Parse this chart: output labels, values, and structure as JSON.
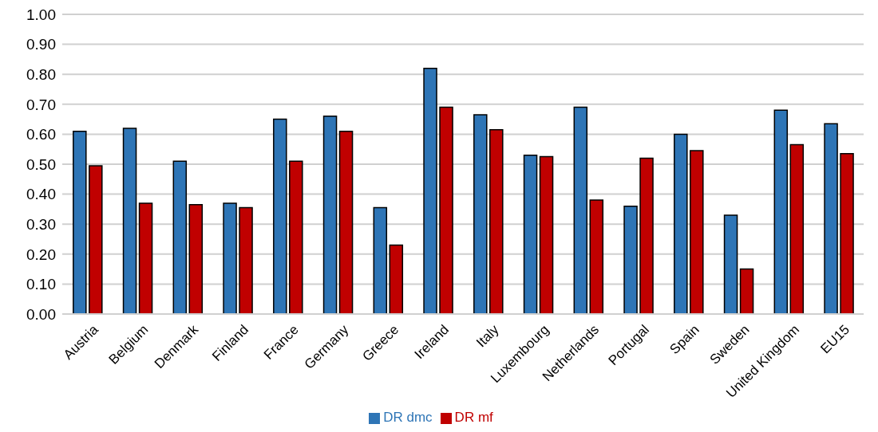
{
  "chart_data": {
    "type": "bar",
    "categories": [
      "Austria",
      "Belgium",
      "Denmark",
      "Finland",
      "France",
      "Germany",
      "Greece",
      "Ireland",
      "Italy",
      "Luxembourg",
      "Netherlands",
      "Portugal",
      "Spain",
      "Sweden",
      "United Kingdom",
      "EU15"
    ],
    "series": [
      {
        "name": "DR dmc",
        "color": "#2e75b6",
        "values": [
          0.61,
          0.62,
          0.51,
          0.37,
          0.65,
          0.66,
          0.355,
          0.82,
          0.665,
          0.53,
          0.69,
          0.36,
          0.6,
          0.33,
          0.68,
          0.635
        ]
      },
      {
        "name": "DR mf",
        "color": "#c00000",
        "values": [
          0.495,
          0.37,
          0.365,
          0.355,
          0.51,
          0.61,
          0.23,
          0.69,
          0.615,
          0.525,
          0.38,
          0.52,
          0.545,
          0.15,
          0.565,
          0.535
        ]
      }
    ],
    "ylim": [
      0,
      1
    ],
    "yticks": [
      {
        "value": 0,
        "label": "0.00"
      },
      {
        "value": 0.1,
        "label": "0.10"
      },
      {
        "value": 0.2,
        "label": "0.20"
      },
      {
        "value": 0.3,
        "label": "0.30"
      },
      {
        "value": 0.4,
        "label": "0.40"
      },
      {
        "value": 0.5,
        "label": "0.50"
      },
      {
        "value": 0.6,
        "label": "0.60"
      },
      {
        "value": 0.7,
        "label": "0.70"
      },
      {
        "value": 0.8,
        "label": "0.80"
      },
      {
        "value": 0.9,
        "label": "0.90"
      },
      {
        "value": 1,
        "label": "1.00"
      }
    ],
    "grid": "y",
    "legend": "bottom"
  }
}
